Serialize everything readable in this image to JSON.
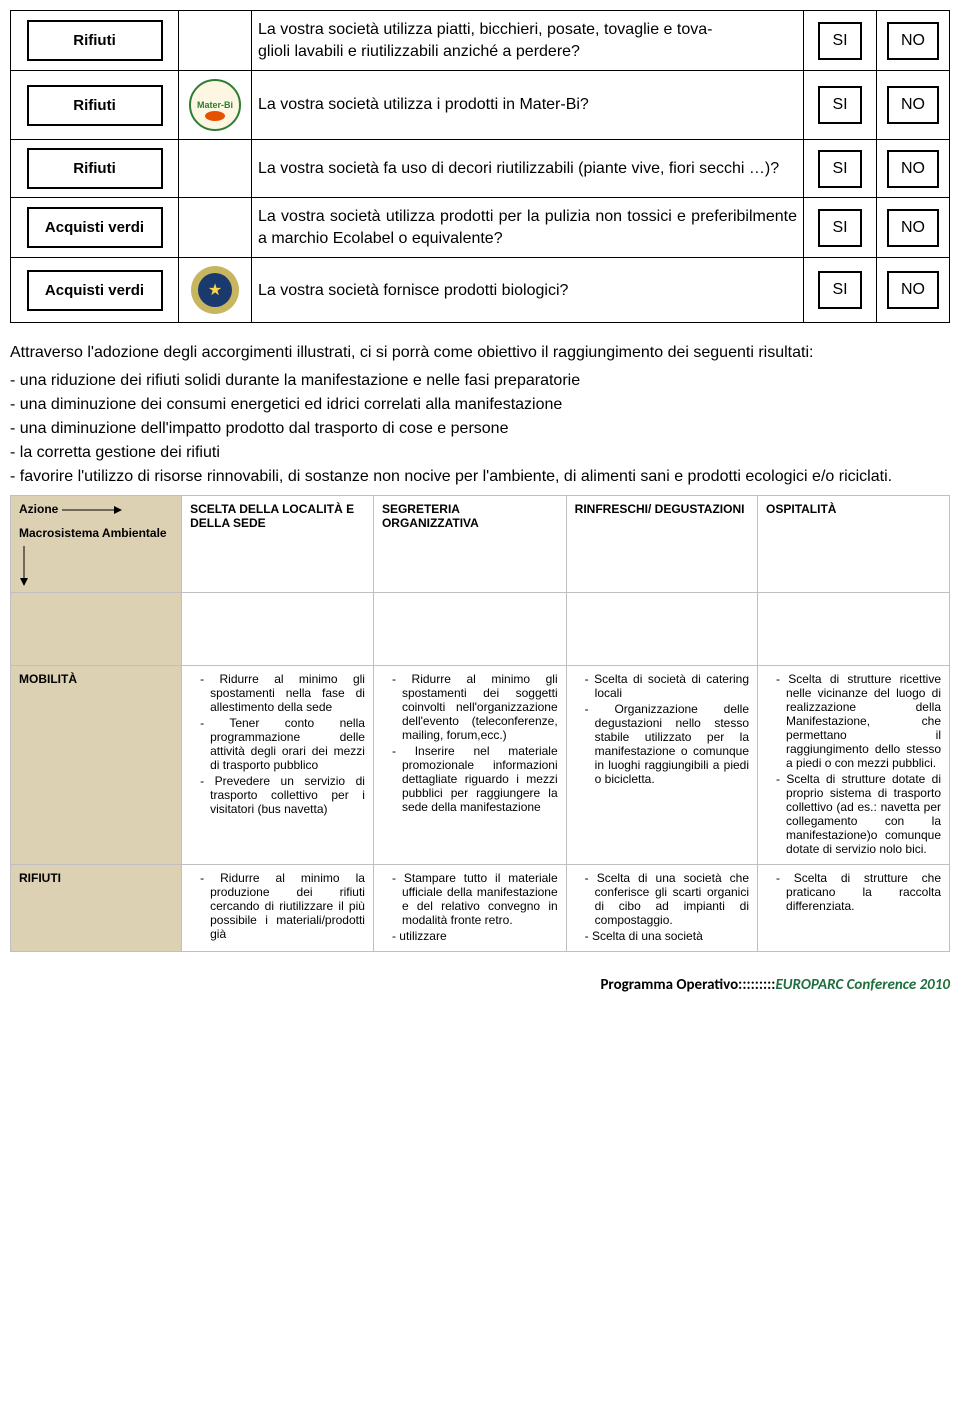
{
  "questions": [
    {
      "category": "Rifiuti",
      "icon": null,
      "text": "La vostra società utilizza piatti, bicchieri, posate, tovaglie e tova-\nglioli lavabili e riutilizzabili anziché a perdere?",
      "yes": "SI",
      "no": "NO",
      "justify": false
    },
    {
      "category": "Rifiuti",
      "icon": "materbi",
      "text": "La vostra società utilizza i prodotti in Mater-Bi?",
      "yes": "SI",
      "no": "NO",
      "justify": false
    },
    {
      "category": "Rifiuti",
      "icon": null,
      "text": "La vostra società fa uso di decori riutilizzabili (piante vive, fiori secchi …)?",
      "yes": "SI",
      "no": "NO",
      "justify": false
    },
    {
      "category": "Acquisti verdi",
      "icon": null,
      "text": "La vostra società utilizza prodotti per la pulizia non tossici e preferibilmente a marchio Ecolabel o equivalente?",
      "yes": "SI",
      "no": "NO",
      "justify": true
    },
    {
      "category": "Acquisti verdi",
      "icon": "bio",
      "text": "La vostra società fornisce prodotti biologici?",
      "yes": "SI",
      "no": "NO",
      "justify": false
    }
  ],
  "intro": "Attraverso l'adozione degli accorgimenti illustrati, ci si porrà come obiettivo il raggiungimento dei seguenti risultati:",
  "bullets": [
    "- una riduzione dei rifiuti solidi durante la manifestazione e nelle fasi preparatorie",
    "- una diminuzione dei consumi energetici ed idrici correlati alla manifestazione",
    "- una diminuzione dell'impatto prodotto dal trasporto di cose e persone",
    "- la corretta gestione dei rifiuti",
    "- favorire l'utilizzo di risorse rinnovabili, di sostanze non nocive per l'ambiente, di alimenti sani e prodotti ecologici e/o riciclati."
  ],
  "matrix": {
    "rowHeader": "Azione",
    "rowSub": "Macrosistema Ambientale",
    "cols": [
      "SCELTA DELLA LOCALITÀ E DELLA SEDE",
      "SEGRETERIA ORGANIZZATIVA",
      "RINFRESCHI/ DEGUSTAZIONI",
      "OSPITALITÀ"
    ],
    "rows": [
      {
        "label": "MOBILITÀ",
        "cells": [
          [
            "Ridurre al minimo gli spostamenti nella fase di allestimento della sede",
            "Tener conto nella programmazione delle attività degli orari dei mezzi di trasporto pubblico",
            "Prevedere un servizio di trasporto collettivo per i visitatori (bus navetta)"
          ],
          [
            "Ridurre al minimo gli spostamenti dei soggetti coinvolti nell'organizzazione dell'evento (teleconferenze, mailing, forum,ecc.)",
            "Inserire nel materiale promozionale informazioni dettagliate riguardo i mezzi pubblici per raggiungere la sede della manifestazione"
          ],
          [
            "Scelta di società di catering locali",
            "Organizzazione delle degustazioni nello stesso stabile utilizzato per la manifestazione o comunque in luoghi raggiungibili a piedi o bicicletta."
          ],
          [
            "Scelta di strutture ricettive nelle vicinanze del luogo di realizzazione della Manifestazione, che permettano il raggiungimento dello stesso a piedi o con mezzi pubblici.",
            "Scelta di strutture dotate di proprio sistema di trasporto collettivo (ad es.: navetta per collegamento con la manifestazione)o comunque dotate di servizio nolo bici."
          ]
        ]
      },
      {
        "label": "RIFIUTI",
        "cells": [
          [
            "Ridurre al minimo la produzione dei rifiuti cercando di riutilizzare il più possibile i materiali/prodotti già"
          ],
          [
            "Stampare tutto il materiale ufficiale della manifestazione e del relativo convegno in modalità fronte retro.",
            "utilizzare"
          ],
          [
            "Scelta di una società che conferisce gli scarti organici di cibo ad impianti di compostaggio.",
            "Scelta di una società"
          ],
          [
            "Scelta di strutture che praticano la raccolta differenziata."
          ]
        ]
      }
    ]
  },
  "footer": {
    "label": "Programma Operativo:::::::::",
    "event": "EUROPARC Conference 2010"
  }
}
